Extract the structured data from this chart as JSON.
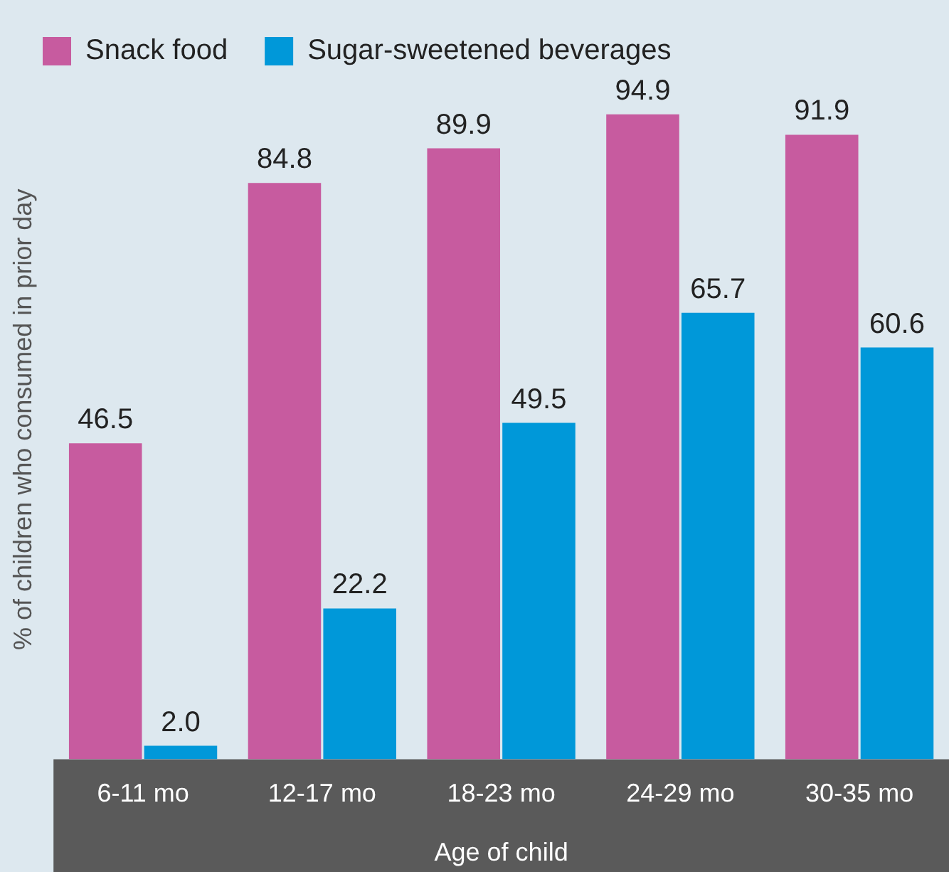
{
  "chart_data": {
    "type": "bar",
    "xlabel": "Age of child",
    "ylabel": "% of children who consumed in prior day",
    "categories": [
      "6-11 mo",
      "12-17 mo",
      "18-23 mo",
      "24-29 mo",
      "30-35 mo"
    ],
    "series": [
      {
        "name": "Snack food",
        "color": "#c75b9f",
        "values": [
          46.5,
          84.8,
          89.9,
          94.9,
          91.9
        ],
        "value_labels": [
          "46.5",
          "84.8",
          "89.9",
          "94.9",
          "91.9"
        ]
      },
      {
        "name": "Sugar-sweetened beverages",
        "color": "#0098d9",
        "values": [
          2.0,
          22.2,
          49.5,
          65.7,
          60.6
        ],
        "value_labels": [
          "2.0",
          "22.2",
          "49.5",
          "65.7",
          "60.6"
        ]
      }
    ],
    "legend": "top left",
    "grid": false
  }
}
